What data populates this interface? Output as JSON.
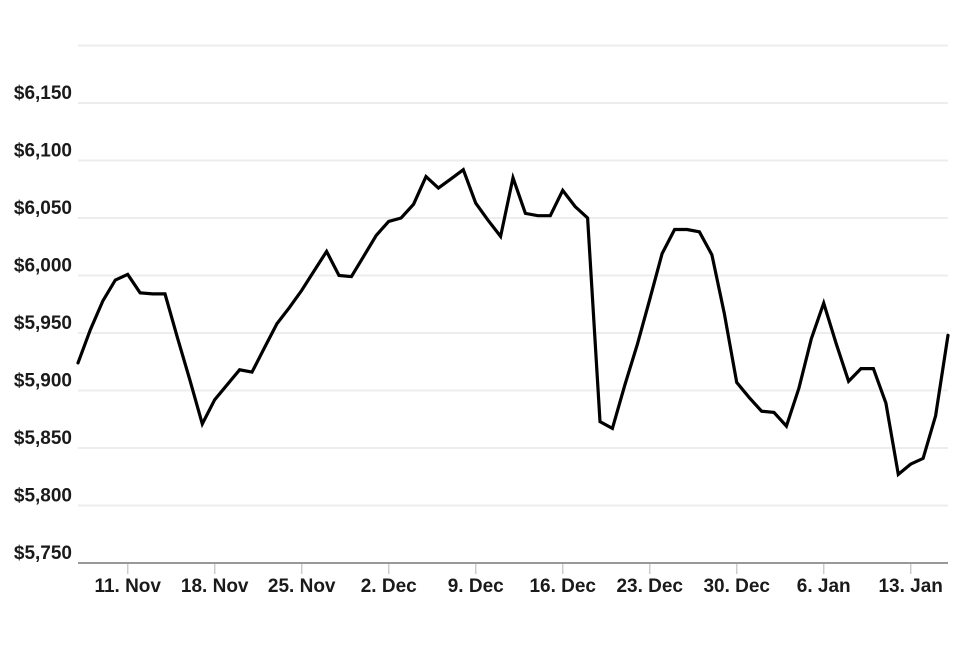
{
  "page": {
    "background": "#ffffff",
    "title": ""
  },
  "chart_data": {
    "type": "line",
    "title": "",
    "subtitle": "",
    "xlabel": "",
    "ylabel": "",
    "legend": "none",
    "grid": true,
    "ylim": [
      5750,
      6200
    ],
    "currency_prefix": "$",
    "line_color": "#000000",
    "grid_color": "#ededed",
    "axis_color": "#999999",
    "tick_color": "#cccccc",
    "label_color": "#1a1a1a",
    "y_ticks": [
      {
        "value": 5750,
        "label": "$5,750"
      },
      {
        "value": 5800,
        "label": "$5,800"
      },
      {
        "value": 5850,
        "label": "$5,850"
      },
      {
        "value": 5900,
        "label": "$5,900"
      },
      {
        "value": 5950,
        "label": "$5,950"
      },
      {
        "value": 6000,
        "label": "$6,000"
      },
      {
        "value": 6050,
        "label": "$6,050"
      },
      {
        "value": 6100,
        "label": "$6,100"
      },
      {
        "value": 6150,
        "label": "$6,150"
      }
    ],
    "unlabeled_gridline_value": 6200,
    "x_ticks": [
      {
        "index": 4,
        "label": "11. Nov"
      },
      {
        "index": 11,
        "label": "18. Nov"
      },
      {
        "index": 18,
        "label": "25. Nov"
      },
      {
        "index": 25,
        "label": "2. Dec"
      },
      {
        "index": 32,
        "label": "9. Dec"
      },
      {
        "index": 39,
        "label": "16. Dec"
      },
      {
        "index": 46,
        "label": "23. Dec"
      },
      {
        "index": 53,
        "label": "30. Dec"
      },
      {
        "index": 60,
        "label": "6. Jan"
      },
      {
        "index": 67,
        "label": "13. Jan"
      }
    ],
    "x": [
      "7. Nov",
      "8. Nov",
      "9. Nov",
      "10. Nov",
      "11. Nov",
      "12. Nov",
      "13. Nov",
      "14. Nov",
      "15. Nov",
      "16. Nov",
      "17. Nov",
      "18. Nov",
      "19. Nov",
      "20. Nov",
      "21. Nov",
      "22. Nov",
      "23. Nov",
      "24. Nov",
      "25. Nov",
      "26. Nov",
      "27. Nov",
      "28. Nov",
      "29. Nov",
      "30. Nov",
      "1. Dec",
      "2. Dec",
      "3. Dec",
      "4. Dec",
      "5. Dec",
      "6. Dec",
      "7. Dec",
      "8. Dec",
      "9. Dec",
      "10. Dec",
      "11. Dec",
      "12. Dec",
      "13. Dec",
      "14. Dec",
      "15. Dec",
      "16. Dec",
      "17. Dec",
      "18. Dec",
      "19. Dec",
      "20. Dec",
      "21. Dec",
      "22. Dec",
      "23. Dec",
      "24. Dec",
      "25. Dec",
      "26. Dec",
      "27. Dec",
      "28. Dec",
      "29. Dec",
      "30. Dec",
      "31. Dec",
      "1. Jan",
      "2. Jan",
      "3. Jan",
      "4. Jan",
      "5. Jan",
      "6. Jan",
      "7. Jan",
      "8. Jan",
      "9. Jan",
      "10. Jan",
      "11. Jan",
      "12. Jan",
      "13. Jan",
      "14. Jan",
      "15. Jan",
      "16. Jan"
    ],
    "values": [
      5924,
      5953,
      5978,
      5996,
      6001,
      5985,
      5984,
      5984,
      5946,
      5909,
      5871,
      5892,
      5905,
      5918,
      5916,
      5937,
      5958,
      5972,
      5987,
      6004,
      6021,
      6000,
      5999,
      6017,
      6035,
      6047,
      6050,
      6062,
      6086,
      6076,
      6084,
      6092,
      6063,
      6048,
      6034,
      6085,
      6054,
      6052,
      6052,
      6074,
      6060,
      6050,
      5873,
      5867,
      5905,
      5940,
      5979,
      6019,
      6040,
      6040,
      6038,
      6018,
      5967,
      5907,
      5894,
      5882,
      5881,
      5869,
      5902,
      5945,
      5976,
      5941,
      5908,
      5919,
      5919,
      5889,
      5827,
      5836,
      5841,
      5878,
      5948
    ]
  }
}
